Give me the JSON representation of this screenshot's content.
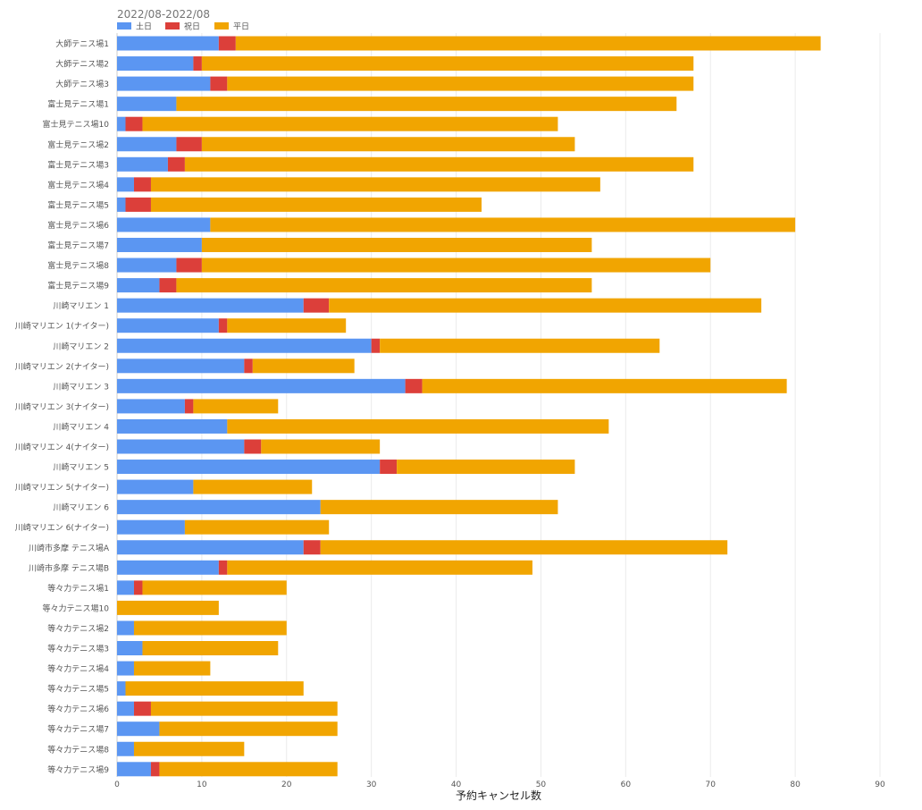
{
  "chart_data": {
    "type": "bar",
    "orientation": "horizontal",
    "stacked": true,
    "title": "2022/08-2022/08",
    "xlabel": "予約キャンセル数",
    "ylabel": "",
    "xlim": [
      0,
      90
    ],
    "xticks": [
      0,
      10,
      20,
      30,
      40,
      50,
      60,
      70,
      80,
      90
    ],
    "grid": true,
    "legend_position": "top-left",
    "categories": [
      "大師テニス場1",
      "大師テニス場2",
      "大師テニス場3",
      "富士見テニス場1",
      "富士見テニス場10",
      "富士見テニス場2",
      "富士見テニス場3",
      "富士見テニス場4",
      "富士見テニス場5",
      "富士見テニス場6",
      "富士見テニス場7",
      "富士見テニス場8",
      "富士見テニス場9",
      "川崎マリエン 1",
      "川崎マリエン 1(ナイター)",
      "川崎マリエン 2",
      "川崎マリエン 2(ナイター)",
      "川崎マリエン 3",
      "川崎マリエン 3(ナイター)",
      "川崎マリエン 4",
      "川崎マリエン 4(ナイター)",
      "川崎マリエン 5",
      "川崎マリエン 5(ナイター)",
      "川崎マリエン 6",
      "川崎マリエン 6(ナイター)",
      "川崎市多摩 テニス場A",
      "川崎市多摩 テニス場B",
      "等々力テニス場1",
      "等々力テニス場10",
      "等々力テニス場2",
      "等々力テニス場3",
      "等々力テニス場4",
      "等々力テニス場5",
      "等々力テニス場6",
      "等々力テニス場7",
      "等々力テニス場8",
      "等々力テニス場9"
    ],
    "series": [
      {
        "name": "土日",
        "color": "#5b96f2",
        "values": [
          12,
          9,
          11,
          7,
          1,
          7,
          6,
          2,
          1,
          11,
          10,
          7,
          5,
          22,
          12,
          30,
          15,
          34,
          8,
          13,
          15,
          31,
          9,
          24,
          8,
          22,
          12,
          2,
          0,
          2,
          3,
          2,
          1,
          2,
          5,
          2,
          4
        ]
      },
      {
        "name": "祝日",
        "color": "#dc3f3a",
        "values": [
          2,
          1,
          2,
          0,
          2,
          3,
          2,
          2,
          3,
          0,
          0,
          3,
          2,
          3,
          1,
          1,
          1,
          2,
          1,
          0,
          2,
          2,
          0,
          0,
          0,
          2,
          1,
          1,
          0,
          0,
          0,
          0,
          0,
          2,
          0,
          0,
          1
        ]
      },
      {
        "name": "平日",
        "color": "#f1a501",
        "values": [
          69,
          58,
          55,
          59,
          49,
          44,
          60,
          53,
          39,
          69,
          46,
          60,
          49,
          51,
          14,
          33,
          12,
          43,
          10,
          45,
          14,
          21,
          14,
          28,
          17,
          48,
          36,
          17,
          12,
          18,
          16,
          9,
          21,
          22,
          21,
          13,
          21
        ]
      }
    ]
  }
}
